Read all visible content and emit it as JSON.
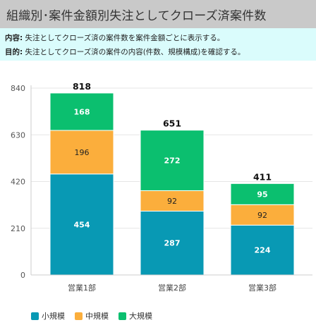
{
  "header": {
    "title": "組織別･案件金額別失注としてクローズ済案件数"
  },
  "description": {
    "content_label": "内容:",
    "content_text": "失注としてクローズ済の案件数を案件金額ごとに表示する。",
    "purpose_label": "目的:",
    "purpose_text": "失注としてクローズ済の案件の内容(件数、規模構成)を確認する。"
  },
  "chart_data": {
    "type": "bar",
    "stacked": true,
    "categories": [
      "営業1部",
      "営業2部",
      "営業3部"
    ],
    "series": [
      {
        "name": "小規模",
        "values": [
          454,
          287,
          224
        ],
        "color": "#0899b4"
      },
      {
        "name": "中規模",
        "values": [
          196,
          92,
          92
        ],
        "color": "#fbae3c"
      },
      {
        "name": "大規模",
        "values": [
          168,
          272,
          95
        ],
        "color": "#0bbf6f"
      }
    ],
    "totals": [
      818,
      651,
      411
    ],
    "yticks": [
      0,
      210,
      420,
      630,
      840
    ],
    "ylim": [
      0,
      840
    ],
    "grid": true,
    "legend_position": "bottom-left"
  }
}
